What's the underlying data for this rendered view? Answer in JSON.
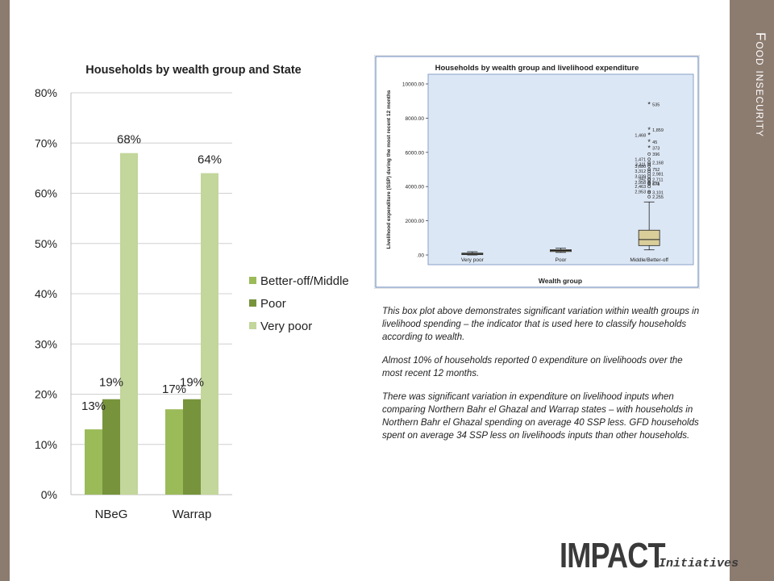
{
  "side_title": "Food insecurity",
  "chart_data": [
    {
      "type": "bar",
      "title": "Households by wealth group and State",
      "categories": [
        "NBeG",
        "Warrap"
      ],
      "series": [
        {
          "name": "Better-off/Middle",
          "values": [
            13,
            17
          ],
          "labels": [
            "13%",
            "17%"
          ],
          "color": "#9bbb59"
        },
        {
          "name": "Poor",
          "values": [
            19,
            19
          ],
          "labels": [
            "19%",
            "19%"
          ],
          "color": "#77933c"
        },
        {
          "name": "Very poor",
          "values": [
            68,
            64
          ],
          "labels": [
            "68%",
            "64%"
          ],
          "color": "#c3d69b"
        }
      ],
      "ylim": [
        0,
        80
      ],
      "yticks": [
        "0%",
        "10%",
        "20%",
        "30%",
        "40%",
        "50%",
        "60%",
        "70%",
        "80%"
      ],
      "legend_position": "right",
      "grid": true
    },
    {
      "type": "box",
      "title": "Households by wealth group and livelihood expenditure",
      "xlabel": "Wealth group",
      "ylabel": "Livelihood expenditure (SSP) during the most recent 12 months",
      "categories": [
        "Very poor",
        "Poor",
        "Middle/Better-off"
      ],
      "ylim": [
        0,
        10000
      ],
      "yticks": [
        ".00",
        "2000.00",
        "4000.00",
        "6000.00",
        "8000.00",
        "10000.00"
      ],
      "boxes": [
        {
          "whisker_low": 0,
          "q1": 20,
          "median": 60,
          "q3": 110,
          "whisker_high": 190
        },
        {
          "whisker_low": 150,
          "q1": 200,
          "median": 260,
          "q3": 310,
          "whisker_high": 400
        },
        {
          "whisker_low": 300,
          "q1": 550,
          "median": 900,
          "q3": 1450,
          "whisker_high": 3100
        }
      ],
      "outlier_labels": [
        {
          "label": "535",
          "value": 8800,
          "marker": "star"
        },
        {
          "label": "1,859",
          "value": 7300,
          "marker": "star"
        },
        {
          "label": "1,468",
          "value": 7000,
          "marker": "star"
        },
        {
          "label": "45",
          "value": 6600,
          "marker": "star"
        },
        {
          "label": "373",
          "value": 6250,
          "marker": "star"
        },
        {
          "label": "396",
          "value": 5900,
          "marker": "circle"
        },
        {
          "label": "1,471",
          "value": 5600,
          "marker": "circle"
        },
        {
          "label": "2,168",
          "value": 5400,
          "marker": "circle"
        },
        {
          "label": "3,311",
          "value": 5300,
          "marker": "circle"
        },
        {
          "label": "3,680",
          "value": 5200,
          "marker": "circle"
        },
        {
          "label": "752",
          "value": 5000,
          "marker": "circle"
        },
        {
          "label": "3,312",
          "value": 4900,
          "marker": "circle"
        },
        {
          "label": "2,981",
          "value": 4750,
          "marker": "circle"
        },
        {
          "label": "3,039",
          "value": 4600,
          "marker": "circle"
        },
        {
          "label": "342",
          "value": 4450,
          "marker": "circle"
        },
        {
          "label": "2,711",
          "value": 4400,
          "marker": "circle"
        },
        {
          "label": "2,958",
          "value": 4250,
          "marker": "circle"
        },
        {
          "label": "211",
          "value": 4200,
          "marker": "circle"
        },
        {
          "label": "678",
          "value": 4150,
          "marker": "circle"
        },
        {
          "label": "2,463",
          "value": 4000,
          "marker": "circle"
        },
        {
          "label": "2,953",
          "value": 3700,
          "marker": "circle"
        },
        {
          "label": "3,101",
          "value": 3650,
          "marker": "circle"
        },
        {
          "label": "2,255",
          "value": 3400,
          "marker": "circle"
        }
      ]
    }
  ],
  "notes": [
    "This box plot above demonstrates significant variation within wealth groups in livelihood spending – the indicator that is used here to classify households according to wealth.",
    "Almost 10% of households reported 0 expenditure on livelihoods over the most recent 12 months.",
    "There was significant variation in expenditure on livelihood inputs when comparing Northern Bahr el Ghazal and Warrap states – with households in Northern Bahr el Ghazal spending on average 40 SSP less. GFD households spent on average 34 SSP less on livelihoods inputs than other households."
  ],
  "logo": {
    "main": "IMPACT",
    "sub": "Initiatives"
  }
}
